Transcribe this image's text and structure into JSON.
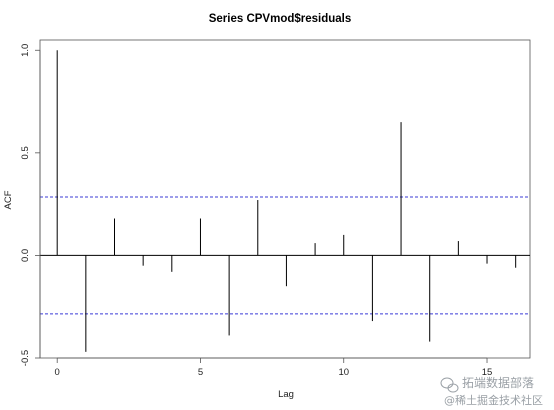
{
  "chart_data": {
    "type": "bar",
    "title": "Series  CPVmod$residuals",
    "xlabel": "Lag",
    "ylabel": "ACF",
    "xlim": [
      -0.6,
      16.5
    ],
    "ylim": [
      -0.5,
      1.05
    ],
    "xticks": [
      0,
      5,
      10,
      15
    ],
    "yticks": [
      -0.5,
      0.0,
      0.5,
      1.0
    ],
    "ytick_labels": [
      "-0.5",
      "0.0",
      "0.5",
      "1.0"
    ],
    "lags": [
      0,
      1,
      2,
      3,
      4,
      5,
      6,
      7,
      8,
      9,
      10,
      11,
      12,
      13,
      14,
      15,
      16
    ],
    "values": [
      1.0,
      -0.47,
      0.18,
      -0.05,
      -0.08,
      0.18,
      -0.39,
      0.27,
      -0.15,
      0.06,
      0.1,
      -0.32,
      0.65,
      -0.42,
      0.07,
      -0.04,
      -0.06
    ],
    "confidence_bounds": [
      0.285,
      -0.285
    ],
    "bound_color": "#3b3bd6",
    "bar_color": "#000000",
    "grid": false
  },
  "watermark": {
    "line1": "拓端数据部落",
    "line2": "@稀土掘金技术社区"
  }
}
